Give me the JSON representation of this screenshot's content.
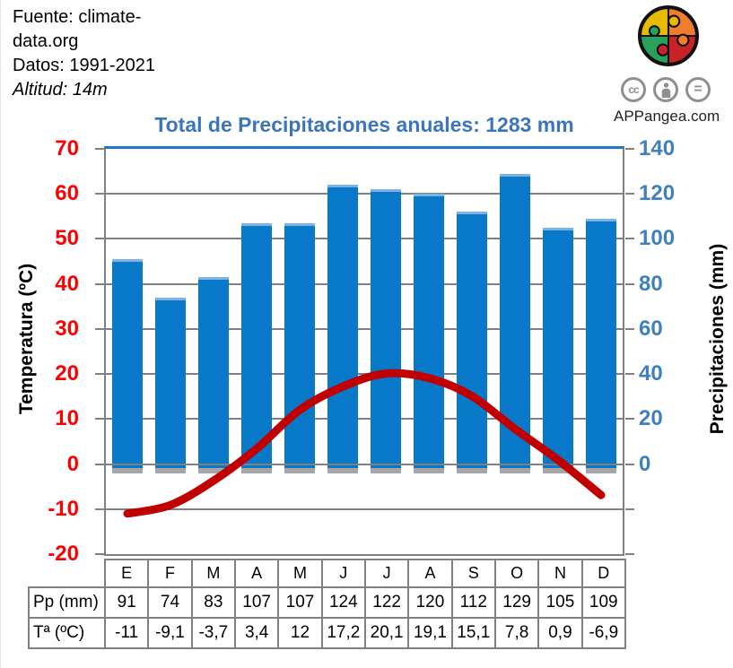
{
  "source_info": {
    "line1": "Fuente: climate-",
    "line2": "data.org",
    "line3": "Datos: 1991-2021",
    "line4": "Altitud: 14m"
  },
  "branding": {
    "site": "APPangea.com",
    "license_badges": [
      "cc",
      "attribution-person",
      "equals"
    ]
  },
  "chart_data": {
    "type": "bar",
    "subtype": "climograph (bar + line combo)",
    "title": "Total de Precipitaciones anuales: 1283 mm",
    "total_annual_precipitation_mm": 1283,
    "categories": [
      "E",
      "F",
      "M",
      "A",
      "M",
      "J",
      "J",
      "A",
      "S",
      "O",
      "N",
      "D"
    ],
    "series": [
      {
        "name": "Pp (mm)",
        "type": "bar",
        "axis": "right",
        "values": [
          91,
          74,
          83,
          107,
          107,
          124,
          122,
          120,
          112,
          129,
          105,
          109
        ]
      },
      {
        "name": "Tª (ºC)",
        "type": "line",
        "axis": "left",
        "values": [
          -11,
          -9.1,
          -3.7,
          3.4,
          12,
          17.2,
          20.1,
          19.1,
          15.1,
          7.8,
          0.9,
          -6.9
        ]
      }
    ],
    "left_axis": {
      "label": "Temperatura (ºC)",
      "min": -20,
      "max": 70,
      "step": 10
    },
    "right_axis": {
      "label": "Precipitaciones (mm)",
      "min": 0,
      "max": 140,
      "step": 20,
      "aligned": "0 mm aligns with 0 ºC, 140 mm aligns with 70 ºC"
    },
    "grid": true,
    "legend": "none"
  },
  "table": {
    "months": [
      "E",
      "F",
      "M",
      "A",
      "M",
      "J",
      "J",
      "A",
      "S",
      "O",
      "N",
      "D"
    ],
    "rows": [
      {
        "header": "Pp (mm)",
        "values": [
          "91",
          "74",
          "83",
          "107",
          "107",
          "124",
          "122",
          "120",
          "112",
          "129",
          "105",
          "109"
        ]
      },
      {
        "header": "Tª (ºC)",
        "values": [
          "-11",
          "-9,1",
          "-3,7",
          "3,4",
          "12",
          "17,2",
          "20,1",
          "19,1",
          "15,1",
          "7,8",
          "0,9",
          "-6,9"
        ]
      }
    ]
  },
  "colors": {
    "bar": "#0878c8",
    "bar_edge": "#7fb2e4",
    "bar_shadow": "#a6a6a6",
    "line": "#c00000",
    "title": "#3b76ba",
    "left_axis_labels": "#fe0000",
    "right_axis_labels": "#4080c0",
    "grid": "#808080",
    "plot_top_border": "#1b78c8",
    "logo": {
      "top_left": "#e7bc00",
      "top_right": "#ee7d2e",
      "bottom_left": "#2aa05f",
      "bottom_right": "#c9232a"
    }
  }
}
